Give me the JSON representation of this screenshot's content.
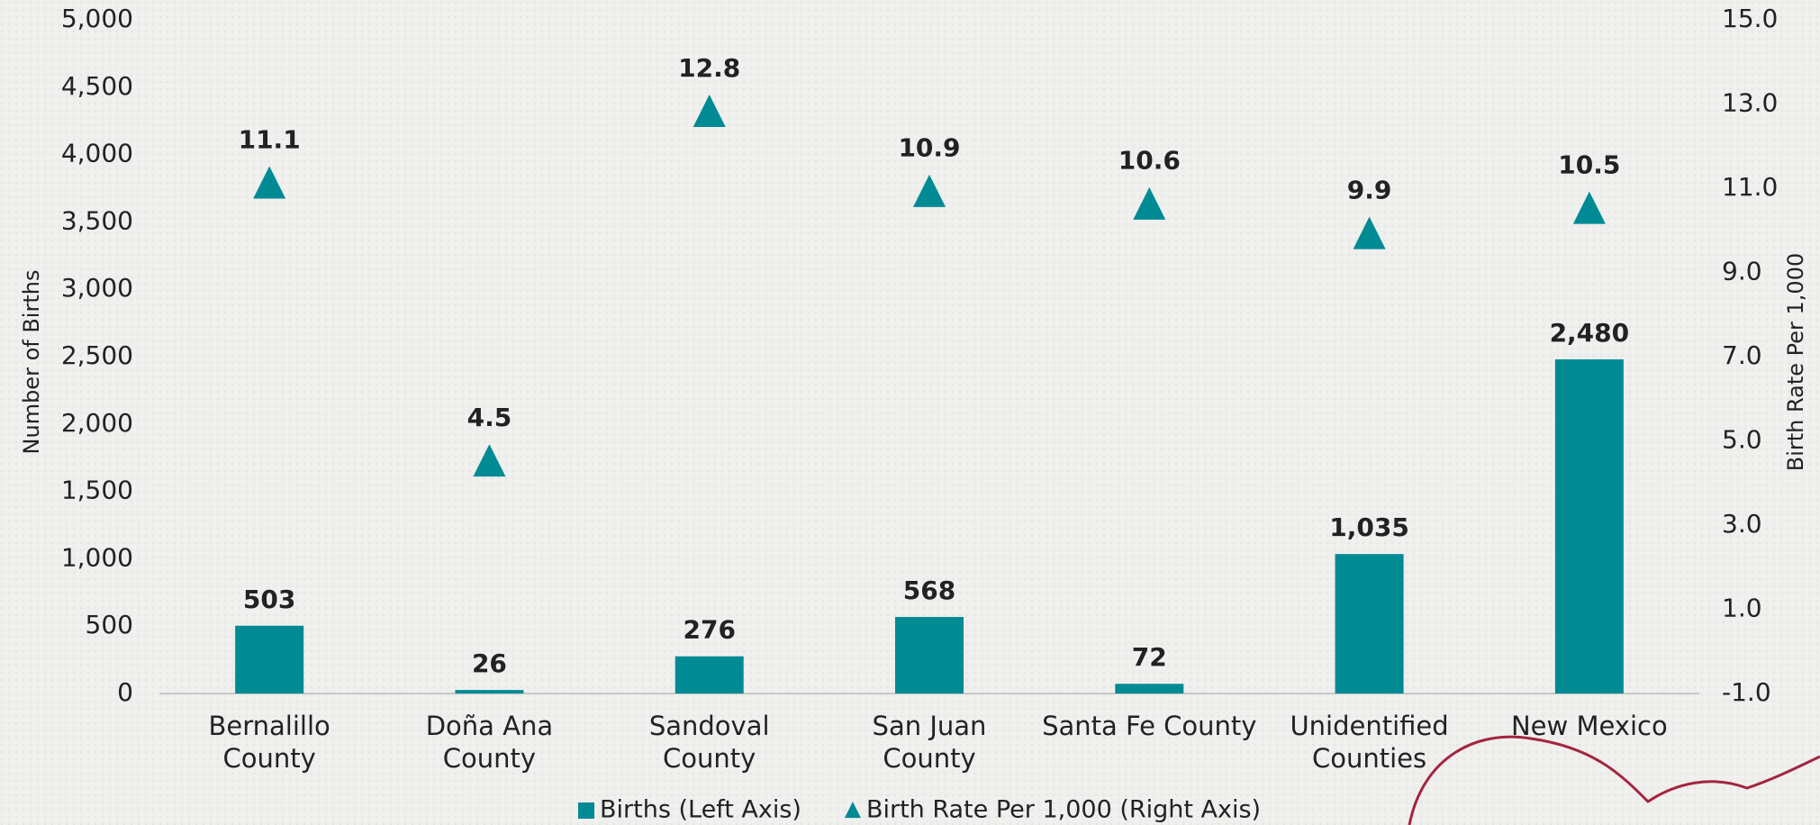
{
  "chart_data": {
    "type": "bar",
    "categories": [
      "Bernalillo\nCounty",
      "Doña Ana\nCounty",
      "Sandoval\nCounty",
      "San Juan\nCounty",
      "Santa Fe County",
      "Unidentified\nCounties",
      "New Mexico"
    ],
    "series": [
      {
        "name": "Births (Left Axis)",
        "color": "#008b94",
        "type": "bar",
        "values": [
          503,
          26,
          276,
          568,
          72,
          1035,
          2480
        ],
        "value_labels": [
          "503",
          "26",
          "276",
          "568",
          "72",
          "1,035",
          "2,480"
        ]
      },
      {
        "name": "Birth Rate Per 1,000 (Right Axis)",
        "color": "#008b94",
        "type": "scatter",
        "marker": "triangle",
        "axis": "y2",
        "values": [
          11.1,
          4.5,
          12.8,
          10.9,
          10.6,
          9.9,
          10.5
        ]
      }
    ],
    "ylabel": "Number of Births",
    "y2label": "Birth Rate Per 1,000",
    "ylim": [
      0,
      5000
    ],
    "yticks": [
      0,
      500,
      {
        "value": 1000,
        "label": "1,000"
      },
      {
        "value": 1500,
        "label": "1,500"
      },
      {
        "value": 2000,
        "label": "2,000"
      },
      {
        "value": 2500,
        "label": "2,500"
      },
      {
        "value": 3000,
        "label": "3,000"
      },
      {
        "value": 3500,
        "label": "3,500"
      },
      {
        "value": 4000,
        "label": "4,000"
      },
      {
        "value": 4500,
        "label": "4,500"
      },
      {
        "value": 5000,
        "label": "5,000"
      }
    ],
    "y2lim": [
      -1,
      15
    ],
    "y2ticks": [
      {
        "value": -1,
        "label": "-1.0"
      },
      {
        "value": 1,
        "label": "1.0"
      },
      {
        "value": 3,
        "label": "3.0"
      },
      {
        "value": 5,
        "label": "5.0"
      },
      {
        "value": 7,
        "label": "7.0"
      },
      {
        "value": 9,
        "label": "9.0"
      },
      {
        "value": 11,
        "label": "11.0"
      },
      {
        "value": 13,
        "label": "13.0"
      },
      {
        "value": 15,
        "label": "15.0"
      }
    ],
    "grid": false,
    "legend": "bottom"
  }
}
